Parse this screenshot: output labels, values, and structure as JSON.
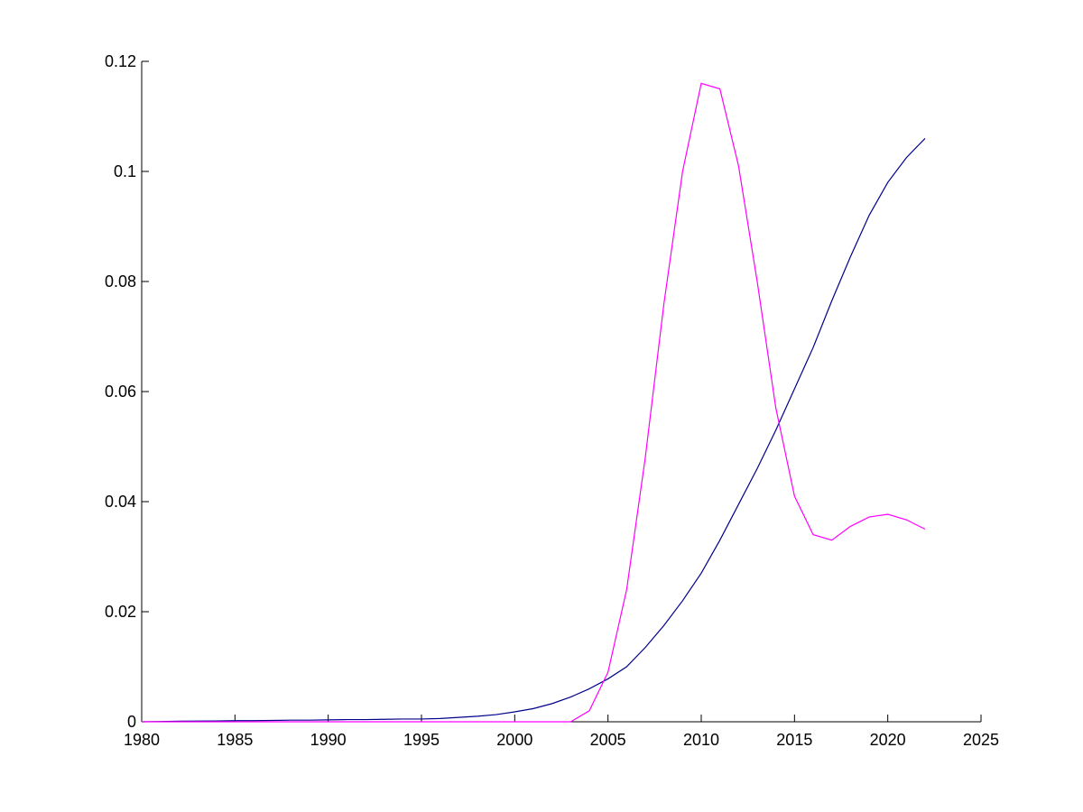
{
  "chart_data": {
    "type": "line",
    "x": [
      1980,
      1981,
      1982,
      1983,
      1984,
      1985,
      1986,
      1987,
      1988,
      1989,
      1990,
      1991,
      1992,
      1993,
      1994,
      1995,
      1996,
      1997,
      1998,
      1999,
      2000,
      2001,
      2002,
      2003,
      2004,
      2005,
      2006,
      2007,
      2008,
      2009,
      2010,
      2011,
      2012,
      2013,
      2014,
      2015,
      2016,
      2017,
      2018,
      2019,
      2020,
      2021,
      2022
    ],
    "series": [
      {
        "color": "#00008b",
        "values": [
          0,
          5e-05,
          0.0001,
          0.00012,
          0.00015,
          0.0002,
          0.0002,
          0.00025,
          0.0003,
          0.0003,
          0.00035,
          0.0004,
          0.0004,
          0.00045,
          0.0005,
          0.0005,
          0.0006,
          0.0008,
          0.001,
          0.0013,
          0.0018,
          0.0024,
          0.0033,
          0.0045,
          0.006,
          0.0078,
          0.01,
          0.0135,
          0.0175,
          0.022,
          0.027,
          0.033,
          0.0395,
          0.046,
          0.053,
          0.0605,
          0.068,
          0.0765,
          0.0845,
          0.092,
          0.098,
          0.1025,
          0.106
        ]
      },
      {
        "color": "#ff00ff",
        "values": [
          0,
          0,
          0,
          0,
          0,
          0,
          0,
          0,
          0,
          0,
          0,
          0,
          0,
          0,
          0,
          0,
          0,
          0,
          0,
          0,
          0,
          0,
          0,
          0,
          0.002,
          0.009,
          0.024,
          0.048,
          0.076,
          0.1,
          0.116,
          0.115,
          0.101,
          0.08,
          0.057,
          0.041,
          0.034,
          0.033,
          0.0355,
          0.0372,
          0.0377,
          0.0367,
          0.035
        ]
      }
    ],
    "xlim": [
      1980,
      2025
    ],
    "xticks": [
      1980,
      1985,
      1990,
      1995,
      2000,
      2005,
      2010,
      2015,
      2020,
      2025
    ],
    "ylim": [
      0,
      0.12
    ],
    "yticks": [
      0,
      0.02,
      0.04,
      0.06,
      0.08,
      0.1,
      0.12
    ]
  }
}
